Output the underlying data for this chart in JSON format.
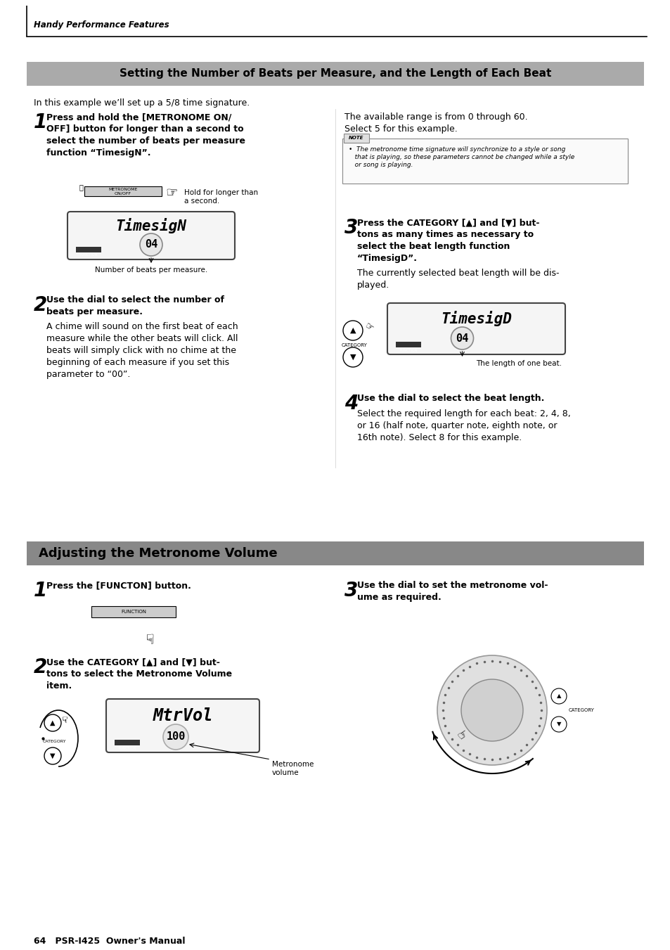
{
  "page_bg": "#ffffff",
  "header_text": "Handy Performance Features",
  "section1_title": "Setting the Number of Beats per Measure, and the Length of Each Beat",
  "section1_title_bg": "#aaaaaa",
  "section2_title": "Adjusting the Metronome Volume",
  "section2_title_bg": "#888888",
  "footer_text": "64   PSR-I425  Owner's Manual",
  "intro_text": "In this example we’ll set up a 5/8 time signature.",
  "step1_left_text": "Press and hold the [METRONOME ON/\nOFF] button for longer than a second to\nselect the number of beats per measure\nfunction “TimesigN”.",
  "step1_left_caption": "Hold for longer than\na second.",
  "step1_left_display": "TimesigN",
  "step1_left_display2": "04",
  "step1_left_display_caption": "Number of beats per measure.",
  "step2_left_bold": "Use the dial to select the number of\nbeats per measure.",
  "step2_left_body": "A chime will sound on the first beat of each\nmeasure while the other beats will click. All\nbeats will simply click with no chime at the\nbeginning of each measure if you set this\nparameter to “00”.",
  "step1_right_body": "The available range is from 0 through 60.\nSelect 5 for this example.",
  "note_text": "•  The metronome time signature will synchronize to a style or song\n   that is playing, so these parameters cannot be changed while a style\n   or song is playing.",
  "step3_right_bold": "Press the CATEGORY [▲] and [▼] but-\ntons as many times as necessary to\nselect the beat length function\n“TimesigD”.",
  "step3_right_body": "The currently selected beat length will be dis-\nplayed.",
  "step3_right_display": "TimesigD",
  "step3_right_display2": "04",
  "step3_right_caption": "The length of one beat.",
  "step4_right_bold": "Use the dial to select the beat length.",
  "step4_right_body": "Select the required length for each beat: 2, 4, 8,\nor 16 (half note, quarter note, eighth note, or\n16th note). Select 8 for this example.",
  "sec2_step1_bold": "Press the [FUNCTON] button.",
  "sec2_step2_bold": "Use the CATEGORY [▲] and [▼] but-\ntons to select the Metronome Volume\nitem.",
  "sec2_step2_display": "MtrVol",
  "sec2_step2_display2": "100",
  "sec2_step2_caption": "Metronome\nvolume",
  "sec2_step3_bold": "Use the dial to set the metronome vol-\nume as required."
}
